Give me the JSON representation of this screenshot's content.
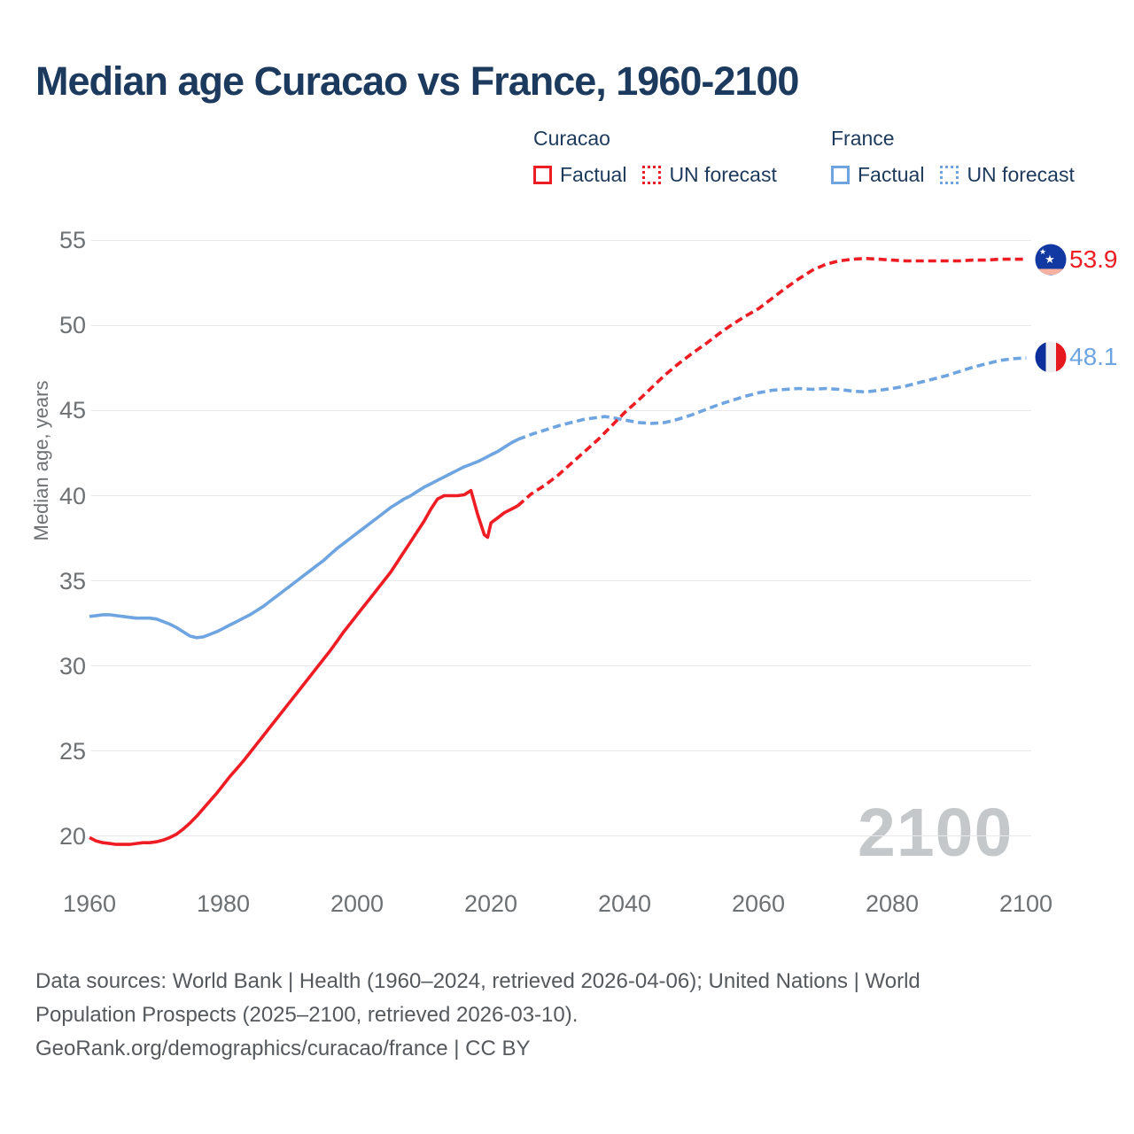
{
  "title": "Median age Curacao vs France, 1960-2100",
  "legend": {
    "groups": [
      {
        "name": "Curacao",
        "color": "#ee1c23",
        "items": [
          {
            "label": "Factual",
            "style": "solid"
          },
          {
            "label": "UN forecast",
            "style": "dotted"
          }
        ]
      },
      {
        "name": "France",
        "color": "#6ea4e0",
        "items": [
          {
            "label": "Factual",
            "style": "solid"
          },
          {
            "label": "UN forecast",
            "style": "dotted"
          }
        ]
      }
    ]
  },
  "y_axis": {
    "label": "Median age, years",
    "ticks": [
      55,
      50,
      45,
      40,
      35,
      30,
      25,
      20
    ]
  },
  "x_axis": {
    "ticks": [
      1960,
      1980,
      2000,
      2020,
      2040,
      2060,
      2080,
      2100
    ]
  },
  "watermark": "2100",
  "end_labels": [
    {
      "series": "Curacao",
      "value": "53.9",
      "flag": "curacao-flag"
    },
    {
      "series": "France",
      "value": "48.1",
      "flag": "france-flag"
    }
  ],
  "footer": {
    "lines": [
      "Data sources: World Bank | Health (1960–2024, retrieved 2026-04-06); United Nations | World",
      "Population Prospects (2025–2100, retrieved 2026-03-10).",
      "GeoRank.org/demographics/curacao/france | CC BY"
    ]
  },
  "colors": {
    "curacao_line": "#ee1c23",
    "france_line": "#6ea4e0",
    "grid": "#e9e9ec",
    "title_text": "#1c3a5e",
    "axis_text": "#6d7174",
    "watermark_text": "#c5c8ca",
    "footer_text": "#55595d"
  },
  "chart_data": {
    "type": "line",
    "title": "Median age Curacao vs France, 1960-2100",
    "xlabel": "",
    "ylabel": "Median age, years",
    "xlim": [
      1960,
      2100
    ],
    "ylim": [
      20,
      55
    ],
    "grid": "horizontal",
    "legend_position": "top-right",
    "series": [
      {
        "name": "France — Factual",
        "color": "#6ea4e0",
        "dash": false,
        "points": [
          [
            1960,
            32.9
          ],
          [
            1961,
            32.95
          ],
          [
            1962,
            33.0
          ],
          [
            1963,
            33.0
          ],
          [
            1964,
            32.95
          ],
          [
            1965,
            32.9
          ],
          [
            1966,
            32.85
          ],
          [
            1967,
            32.8
          ],
          [
            1968,
            32.8
          ],
          [
            1969,
            32.8
          ],
          [
            1970,
            32.75
          ],
          [
            1971,
            32.6
          ],
          [
            1972,
            32.45
          ],
          [
            1973,
            32.25
          ],
          [
            1974,
            32.0
          ],
          [
            1975,
            31.75
          ],
          [
            1976,
            31.65
          ],
          [
            1977,
            31.7
          ],
          [
            1978,
            31.85
          ],
          [
            1979,
            32.0
          ],
          [
            1980,
            32.2
          ],
          [
            1981,
            32.4
          ],
          [
            1982,
            32.6
          ],
          [
            1983,
            32.8
          ],
          [
            1984,
            33.0
          ],
          [
            1985,
            33.25
          ],
          [
            1986,
            33.5
          ],
          [
            1987,
            33.8
          ],
          [
            1988,
            34.1
          ],
          [
            1989,
            34.4
          ],
          [
            1990,
            34.7
          ],
          [
            1991,
            35.0
          ],
          [
            1992,
            35.3
          ],
          [
            1993,
            35.6
          ],
          [
            1994,
            35.9
          ],
          [
            1995,
            36.2
          ],
          [
            1996,
            36.55
          ],
          [
            1997,
            36.9
          ],
          [
            1998,
            37.2
          ],
          [
            1999,
            37.5
          ],
          [
            2000,
            37.8
          ],
          [
            2001,
            38.1
          ],
          [
            2002,
            38.4
          ],
          [
            2003,
            38.7
          ],
          [
            2004,
            39.0
          ],
          [
            2005,
            39.3
          ],
          [
            2006,
            39.55
          ],
          [
            2007,
            39.8
          ],
          [
            2008,
            40.0
          ],
          [
            2009,
            40.25
          ],
          [
            2010,
            40.5
          ],
          [
            2011,
            40.7
          ],
          [
            2012,
            40.9
          ],
          [
            2013,
            41.1
          ],
          [
            2014,
            41.3
          ],
          [
            2015,
            41.5
          ],
          [
            2016,
            41.7
          ],
          [
            2017,
            41.85
          ],
          [
            2018,
            42.0
          ],
          [
            2019,
            42.2
          ],
          [
            2020,
            42.4
          ],
          [
            2021,
            42.6
          ],
          [
            2022,
            42.85
          ],
          [
            2023,
            43.1
          ],
          [
            2024,
            43.3
          ]
        ]
      },
      {
        "name": "France — UN forecast",
        "color": "#6ea4e0",
        "dash": true,
        "points": [
          [
            2024,
            43.3
          ],
          [
            2026,
            43.6
          ],
          [
            2028,
            43.85
          ],
          [
            2030,
            44.1
          ],
          [
            2032,
            44.3
          ],
          [
            2034,
            44.5
          ],
          [
            2036,
            44.6
          ],
          [
            2037,
            44.65
          ],
          [
            2038,
            44.6
          ],
          [
            2040,
            44.45
          ],
          [
            2042,
            44.3
          ],
          [
            2044,
            44.25
          ],
          [
            2046,
            44.3
          ],
          [
            2048,
            44.5
          ],
          [
            2050,
            44.75
          ],
          [
            2052,
            45.05
          ],
          [
            2054,
            45.35
          ],
          [
            2056,
            45.6
          ],
          [
            2058,
            45.85
          ],
          [
            2060,
            46.05
          ],
          [
            2062,
            46.2
          ],
          [
            2064,
            46.25
          ],
          [
            2066,
            46.3
          ],
          [
            2068,
            46.25
          ],
          [
            2070,
            46.3
          ],
          [
            2072,
            46.25
          ],
          [
            2074,
            46.15
          ],
          [
            2076,
            46.1
          ],
          [
            2078,
            46.2
          ],
          [
            2080,
            46.3
          ],
          [
            2082,
            46.45
          ],
          [
            2084,
            46.65
          ],
          [
            2086,
            46.85
          ],
          [
            2088,
            47.05
          ],
          [
            2090,
            47.3
          ],
          [
            2092,
            47.55
          ],
          [
            2094,
            47.75
          ],
          [
            2096,
            47.95
          ],
          [
            2098,
            48.05
          ],
          [
            2100,
            48.1
          ]
        ]
      },
      {
        "name": "Curacao — Factual",
        "color": "#ee1c23",
        "dash": false,
        "points": [
          [
            1960,
            19.9
          ],
          [
            1961,
            19.7
          ],
          [
            1962,
            19.6
          ],
          [
            1963,
            19.55
          ],
          [
            1964,
            19.5
          ],
          [
            1965,
            19.5
          ],
          [
            1966,
            19.5
          ],
          [
            1967,
            19.55
          ],
          [
            1968,
            19.6
          ],
          [
            1969,
            19.6
          ],
          [
            1970,
            19.65
          ],
          [
            1971,
            19.75
          ],
          [
            1972,
            19.9
          ],
          [
            1973,
            20.1
          ],
          [
            1974,
            20.4
          ],
          [
            1975,
            20.75
          ],
          [
            1976,
            21.15
          ],
          [
            1977,
            21.6
          ],
          [
            1978,
            22.05
          ],
          [
            1979,
            22.5
          ],
          [
            1980,
            23.0
          ],
          [
            1981,
            23.5
          ],
          [
            1982,
            23.95
          ],
          [
            1983,
            24.4
          ],
          [
            1984,
            24.9
          ],
          [
            1985,
            25.4
          ],
          [
            1986,
            25.9
          ],
          [
            1987,
            26.4
          ],
          [
            1988,
            26.9
          ],
          [
            1989,
            27.4
          ],
          [
            1990,
            27.9
          ],
          [
            1991,
            28.4
          ],
          [
            1992,
            28.9
          ],
          [
            1993,
            29.4
          ],
          [
            1994,
            29.9
          ],
          [
            1995,
            30.4
          ],
          [
            1996,
            30.9
          ],
          [
            1997,
            31.45
          ],
          [
            1998,
            32.0
          ],
          [
            1999,
            32.5
          ],
          [
            2000,
            33.0
          ],
          [
            2001,
            33.5
          ],
          [
            2002,
            34.0
          ],
          [
            2003,
            34.5
          ],
          [
            2004,
            35.0
          ],
          [
            2005,
            35.5
          ],
          [
            2006,
            36.1
          ],
          [
            2007,
            36.7
          ],
          [
            2008,
            37.3
          ],
          [
            2009,
            37.9
          ],
          [
            2010,
            38.5
          ],
          [
            2011,
            39.2
          ],
          [
            2012,
            39.8
          ],
          [
            2013,
            40.0
          ],
          [
            2014,
            40.0
          ],
          [
            2015,
            40.0
          ],
          [
            2016,
            40.05
          ],
          [
            2017,
            40.3
          ],
          [
            2018,
            38.9
          ],
          [
            2019,
            37.7
          ],
          [
            2019.5,
            37.55
          ],
          [
            2020,
            38.4
          ],
          [
            2021,
            38.7
          ],
          [
            2022,
            39.0
          ],
          [
            2023,
            39.2
          ],
          [
            2024,
            39.4
          ]
        ]
      },
      {
        "name": "Curacao — UN forecast",
        "color": "#ee1c23",
        "dash": true,
        "points": [
          [
            2024,
            39.4
          ],
          [
            2026,
            40.1
          ],
          [
            2028,
            40.6
          ],
          [
            2030,
            41.2
          ],
          [
            2032,
            41.9
          ],
          [
            2034,
            42.6
          ],
          [
            2036,
            43.3
          ],
          [
            2038,
            44.1
          ],
          [
            2040,
            44.9
          ],
          [
            2042,
            45.6
          ],
          [
            2044,
            46.35
          ],
          [
            2046,
            47.1
          ],
          [
            2048,
            47.75
          ],
          [
            2050,
            48.35
          ],
          [
            2052,
            48.9
          ],
          [
            2054,
            49.5
          ],
          [
            2056,
            50.05
          ],
          [
            2058,
            50.55
          ],
          [
            2060,
            51.0
          ],
          [
            2062,
            51.6
          ],
          [
            2064,
            52.2
          ],
          [
            2066,
            52.75
          ],
          [
            2068,
            53.25
          ],
          [
            2070,
            53.6
          ],
          [
            2072,
            53.8
          ],
          [
            2074,
            53.9
          ],
          [
            2076,
            53.95
          ],
          [
            2078,
            53.9
          ],
          [
            2080,
            53.85
          ],
          [
            2082,
            53.8
          ],
          [
            2084,
            53.8
          ],
          [
            2086,
            53.8
          ],
          [
            2088,
            53.8
          ],
          [
            2090,
            53.8
          ],
          [
            2092,
            53.85
          ],
          [
            2094,
            53.85
          ],
          [
            2096,
            53.9
          ],
          [
            2098,
            53.9
          ],
          [
            2100,
            53.9
          ]
        ]
      }
    ],
    "end_annotations": [
      {
        "series": "Curacao",
        "year": 2100,
        "value": 53.9
      },
      {
        "series": "France",
        "year": 2100,
        "value": 48.1
      }
    ]
  }
}
